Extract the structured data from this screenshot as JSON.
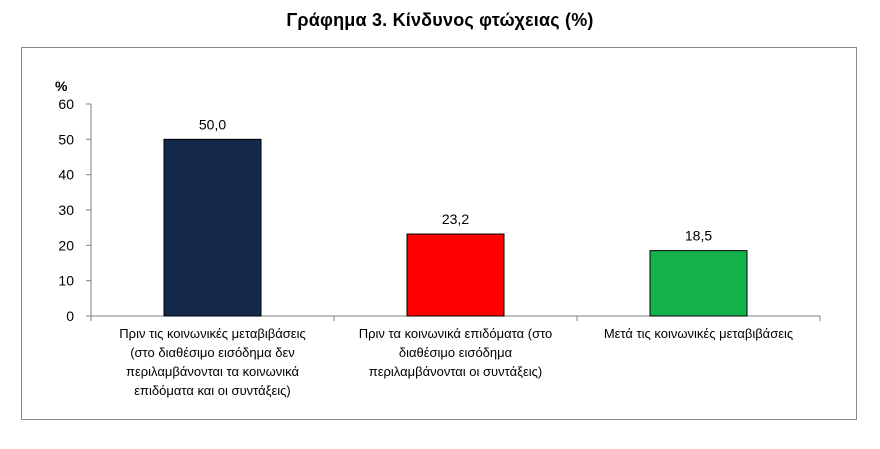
{
  "chart_data": {
    "type": "bar",
    "title": "Γράφημα 3.  Κίνδυνος φτώχειας (%)",
    "ylabel": "%",
    "ylim": [
      0,
      60
    ],
    "yticks": [
      0,
      10,
      20,
      30,
      40,
      50,
      60
    ],
    "grid": false,
    "legend": "none",
    "categories": [
      [
        "Πριν τις κοινωνικές μεταβιβάσεις",
        "(στο διαθέσιμο εισόδημα δεν",
        "περιλαμβάνονται τα κοινωνικά",
        "επιδόματα και οι συντάξεις)"
      ],
      [
        "Πριν τα κοινωνικά επιδόματα (στο",
        "διαθέσιμο εισόδημα",
        "περιλαμβάνονται οι συντάξεις)"
      ],
      [
        "Μετά τις κοινωνικές μεταβιβάσεις"
      ]
    ],
    "values": [
      50.0,
      23.2,
      18.5
    ],
    "data_labels": [
      "50,0",
      "23,2",
      "18,5"
    ],
    "colors": [
      "#13284a",
      "#ff0000",
      "#13b24a"
    ]
  }
}
